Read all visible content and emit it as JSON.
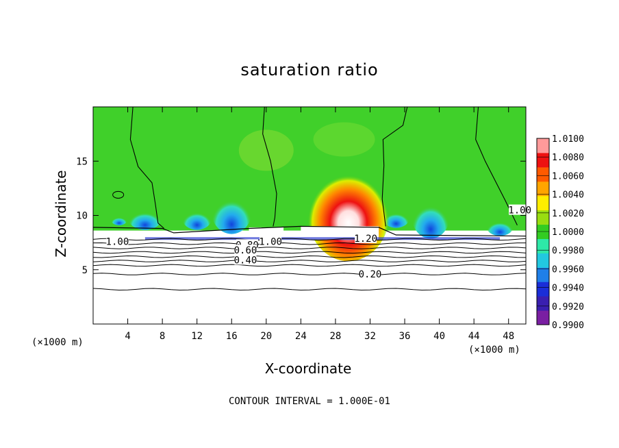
{
  "chart_data": {
    "type": "heatmap",
    "title": "saturation ratio",
    "xlabel": "X-coordinate",
    "ylabel": "Z-coordinate",
    "x_unit": "(×1000 m)",
    "y_unit": "(×1000 m)",
    "xlim": [
      0,
      50
    ],
    "ylim": [
      0,
      20
    ],
    "x_ticks": [
      4,
      8,
      12,
      16,
      20,
      24,
      28,
      32,
      36,
      40,
      44,
      48
    ],
    "y_ticks": [
      5,
      10,
      15
    ],
    "colorbar": {
      "min": 0.99,
      "max": 1.01,
      "levels": [
        "1.0100",
        "1.0080",
        "1.0060",
        "1.0040",
        "1.0020",
        "1.0000",
        "0.9980",
        "0.9960",
        "0.9940",
        "0.9920",
        "0.9900"
      ]
    },
    "contour_labels": [
      {
        "text": "1.00",
        "x": 49.3,
        "z": 10.5
      },
      {
        "text": "1.00",
        "x": 2.8,
        "z": 7.6
      },
      {
        "text": "1.00",
        "x": 20.5,
        "z": 7.6
      },
      {
        "text": "1.20",
        "x": 31.5,
        "z": 7.9
      },
      {
        "text": "0.80",
        "x": 17.8,
        "z": 7.3
      },
      {
        "text": "0.60",
        "x": 17.6,
        "z": 6.8
      },
      {
        "text": "0.40",
        "x": 17.6,
        "z": 5.9
      },
      {
        "text": "0.20",
        "x": 32.0,
        "z": 4.6
      }
    ],
    "footer": "CONTOUR INTERVAL = 1.000E-01"
  }
}
